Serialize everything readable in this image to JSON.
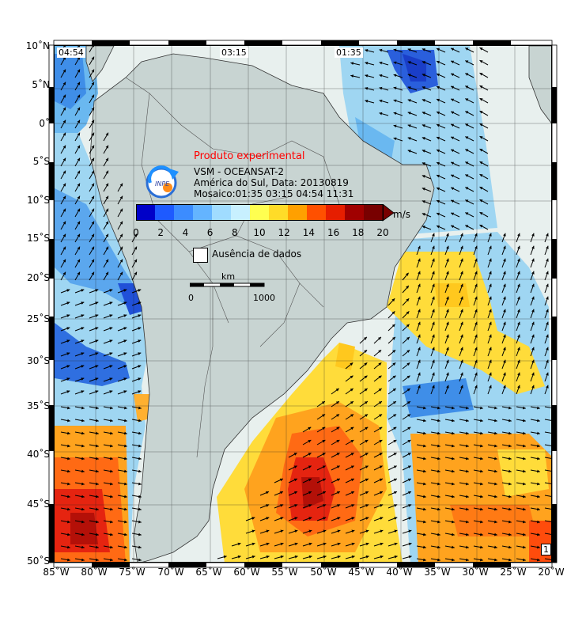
{
  "pass_times": [
    "04:54",
    "03:15",
    "01:35"
  ],
  "title": "Produto experimental",
  "info_lines": [
    "VSM - OCEANSAT-2",
    "América do Sul, Data: 20130819",
    "Mosaico:01:35 03:15 04:54 11:31"
  ],
  "colorbar": {
    "ticks": [
      "0",
      "2",
      "4",
      "6",
      "8",
      "10",
      "12",
      "14",
      "16",
      "18",
      "20"
    ],
    "unit": "m/s",
    "range": [
      0,
      20
    ],
    "colors": [
      "#0000c8",
      "#1e5aff",
      "#3c8cff",
      "#64b4ff",
      "#a0dcff",
      "#c8f0ff",
      "#ffff50",
      "#ffdc28",
      "#ffa000",
      "#ff5000",
      "#e61e00",
      "#a00000",
      "#780000"
    ]
  },
  "legend_absence": "Ausência de dados",
  "scale": {
    "unit": "km",
    "start": "0",
    "end": "1000"
  },
  "lat_labels": [
    "10˚N",
    "5˚N",
    "0˚",
    "5˚S",
    "10˚S",
    "15˚S",
    "20˚S",
    "25˚S",
    "30˚S",
    "35˚S",
    "40˚S",
    "45˚S",
    "50˚S"
  ],
  "lon_labels": [
    "85˚W",
    "80˚W",
    "75˚W",
    "70˚W",
    "65˚W",
    "60˚W",
    "55˚W",
    "50˚W",
    "45˚W",
    "40˚W",
    "35˚W",
    "30˚W",
    "25˚W",
    "20˚W"
  ],
  "extent": {
    "lon": [
      -85,
      -20
    ],
    "lat": [
      -50,
      10
    ]
  },
  "page_number": "1",
  "land_color": "#c8d4d2",
  "ocean_color": "#e8f0ee"
}
